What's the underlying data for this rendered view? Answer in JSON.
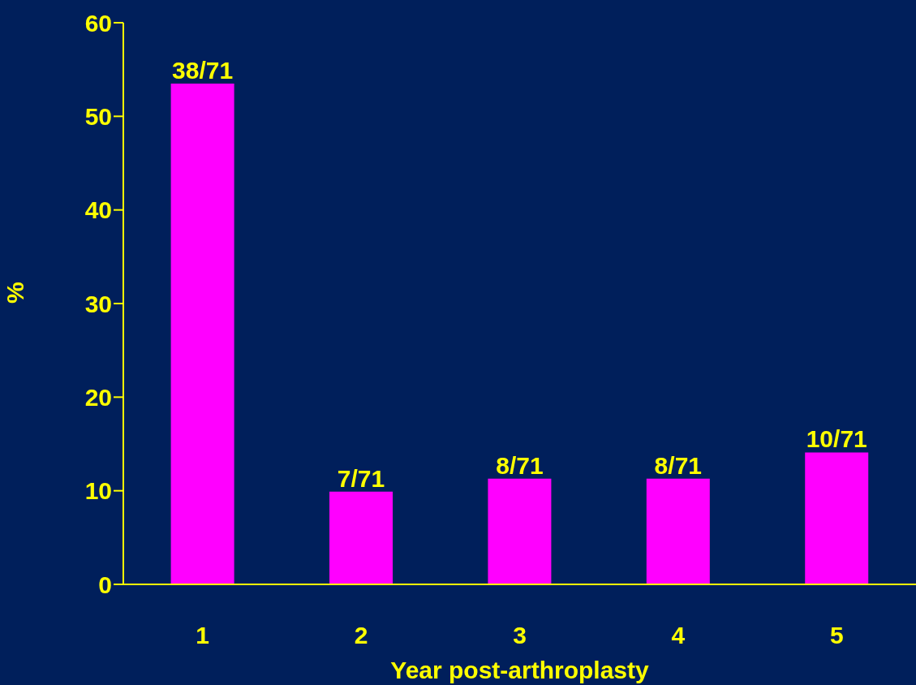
{
  "chart_data": {
    "type": "bar",
    "xlabel": "Year post-arthroplasty",
    "ylabel": "%",
    "categories": [
      "1",
      "2",
      "3",
      "4",
      "5"
    ],
    "values": [
      53.5,
      9.9,
      11.3,
      11.3,
      14.1
    ],
    "value_labels": [
      "38/71",
      "7/71",
      "8/71",
      "8/71",
      "10/71"
    ],
    "color": "#ff00ff",
    "ylim": [
      0,
      60
    ],
    "yticks": [
      0,
      10,
      20,
      30,
      40,
      50,
      60
    ],
    "grid": false,
    "legend": false
  }
}
